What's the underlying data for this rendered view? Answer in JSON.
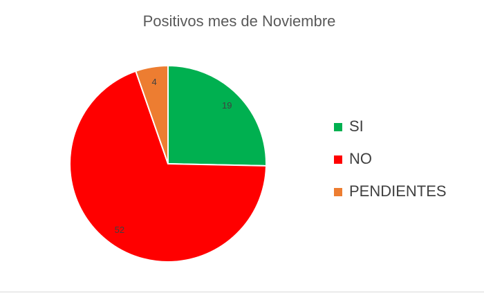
{
  "chart_data": {
    "type": "pie",
    "title": "Positivos mes de Noviembre",
    "categories": [
      "SI",
      "NO",
      "PENDIENTES"
    ],
    "values": [
      19,
      52,
      4
    ],
    "colors": [
      "#00b050",
      "#ff0000",
      "#ed7d31"
    ],
    "legend": "right"
  }
}
